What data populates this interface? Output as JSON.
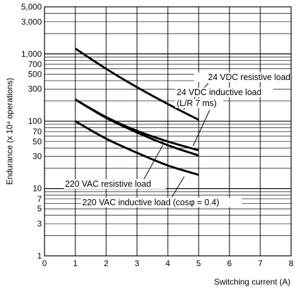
{
  "chart_data": {
    "type": "line",
    "x_axis": {
      "label": "Switching current (A)",
      "range": [
        0,
        8
      ],
      "ticks": [
        "0",
        "1",
        "2",
        "3",
        "4",
        "5",
        "6",
        "7",
        "8"
      ]
    },
    "y_axis": {
      "label": "Endurance (x 10⁴ operations)",
      "scale": "log",
      "range": [
        1,
        5000
      ],
      "tick_values": [
        1,
        3,
        5,
        7,
        10,
        30,
        50,
        70,
        100,
        300,
        500,
        700,
        1000,
        3000,
        5000
      ],
      "tick_labels": [
        "1",
        "3",
        "5",
        "7",
        "10",
        "30",
        "50",
        "70",
        "100",
        "300",
        "500",
        "700",
        "1,000",
        "3,000",
        "5,000"
      ]
    },
    "grid": true,
    "series": [
      {
        "name": "24 VDC resistive load",
        "x": [
          1,
          2,
          3,
          4,
          5
        ],
        "y": [
          1200,
          600,
          320,
          180,
          105
        ]
      },
      {
        "name": "24 VDC inductive load (L/R 7 ms)",
        "x": [
          1,
          2,
          3,
          4,
          5
        ],
        "y": [
          210,
          115,
          72,
          50,
          37
        ]
      },
      {
        "name": "220 VAC resistive load",
        "x": [
          1,
          2,
          3,
          4,
          5
        ],
        "y": [
          210,
          112,
          68,
          44,
          31
        ]
      },
      {
        "name": "220 VAC inductive load (cosφ = 0.4)",
        "x": [
          1,
          2,
          3,
          4,
          5
        ],
        "y": [
          100,
          55,
          34,
          22,
          16
        ]
      }
    ],
    "annotations": [
      {
        "lines": [
          "24 VDC resistive load"
        ]
      },
      {
        "lines": [
          "24 VDC inductive load",
          "(L/R 7 ms)"
        ]
      },
      {
        "lines": [
          "220 VAC resistive load"
        ]
      },
      {
        "lines": [
          "220 VAC inductive load (cosφ = 0.4)"
        ]
      }
    ]
  }
}
